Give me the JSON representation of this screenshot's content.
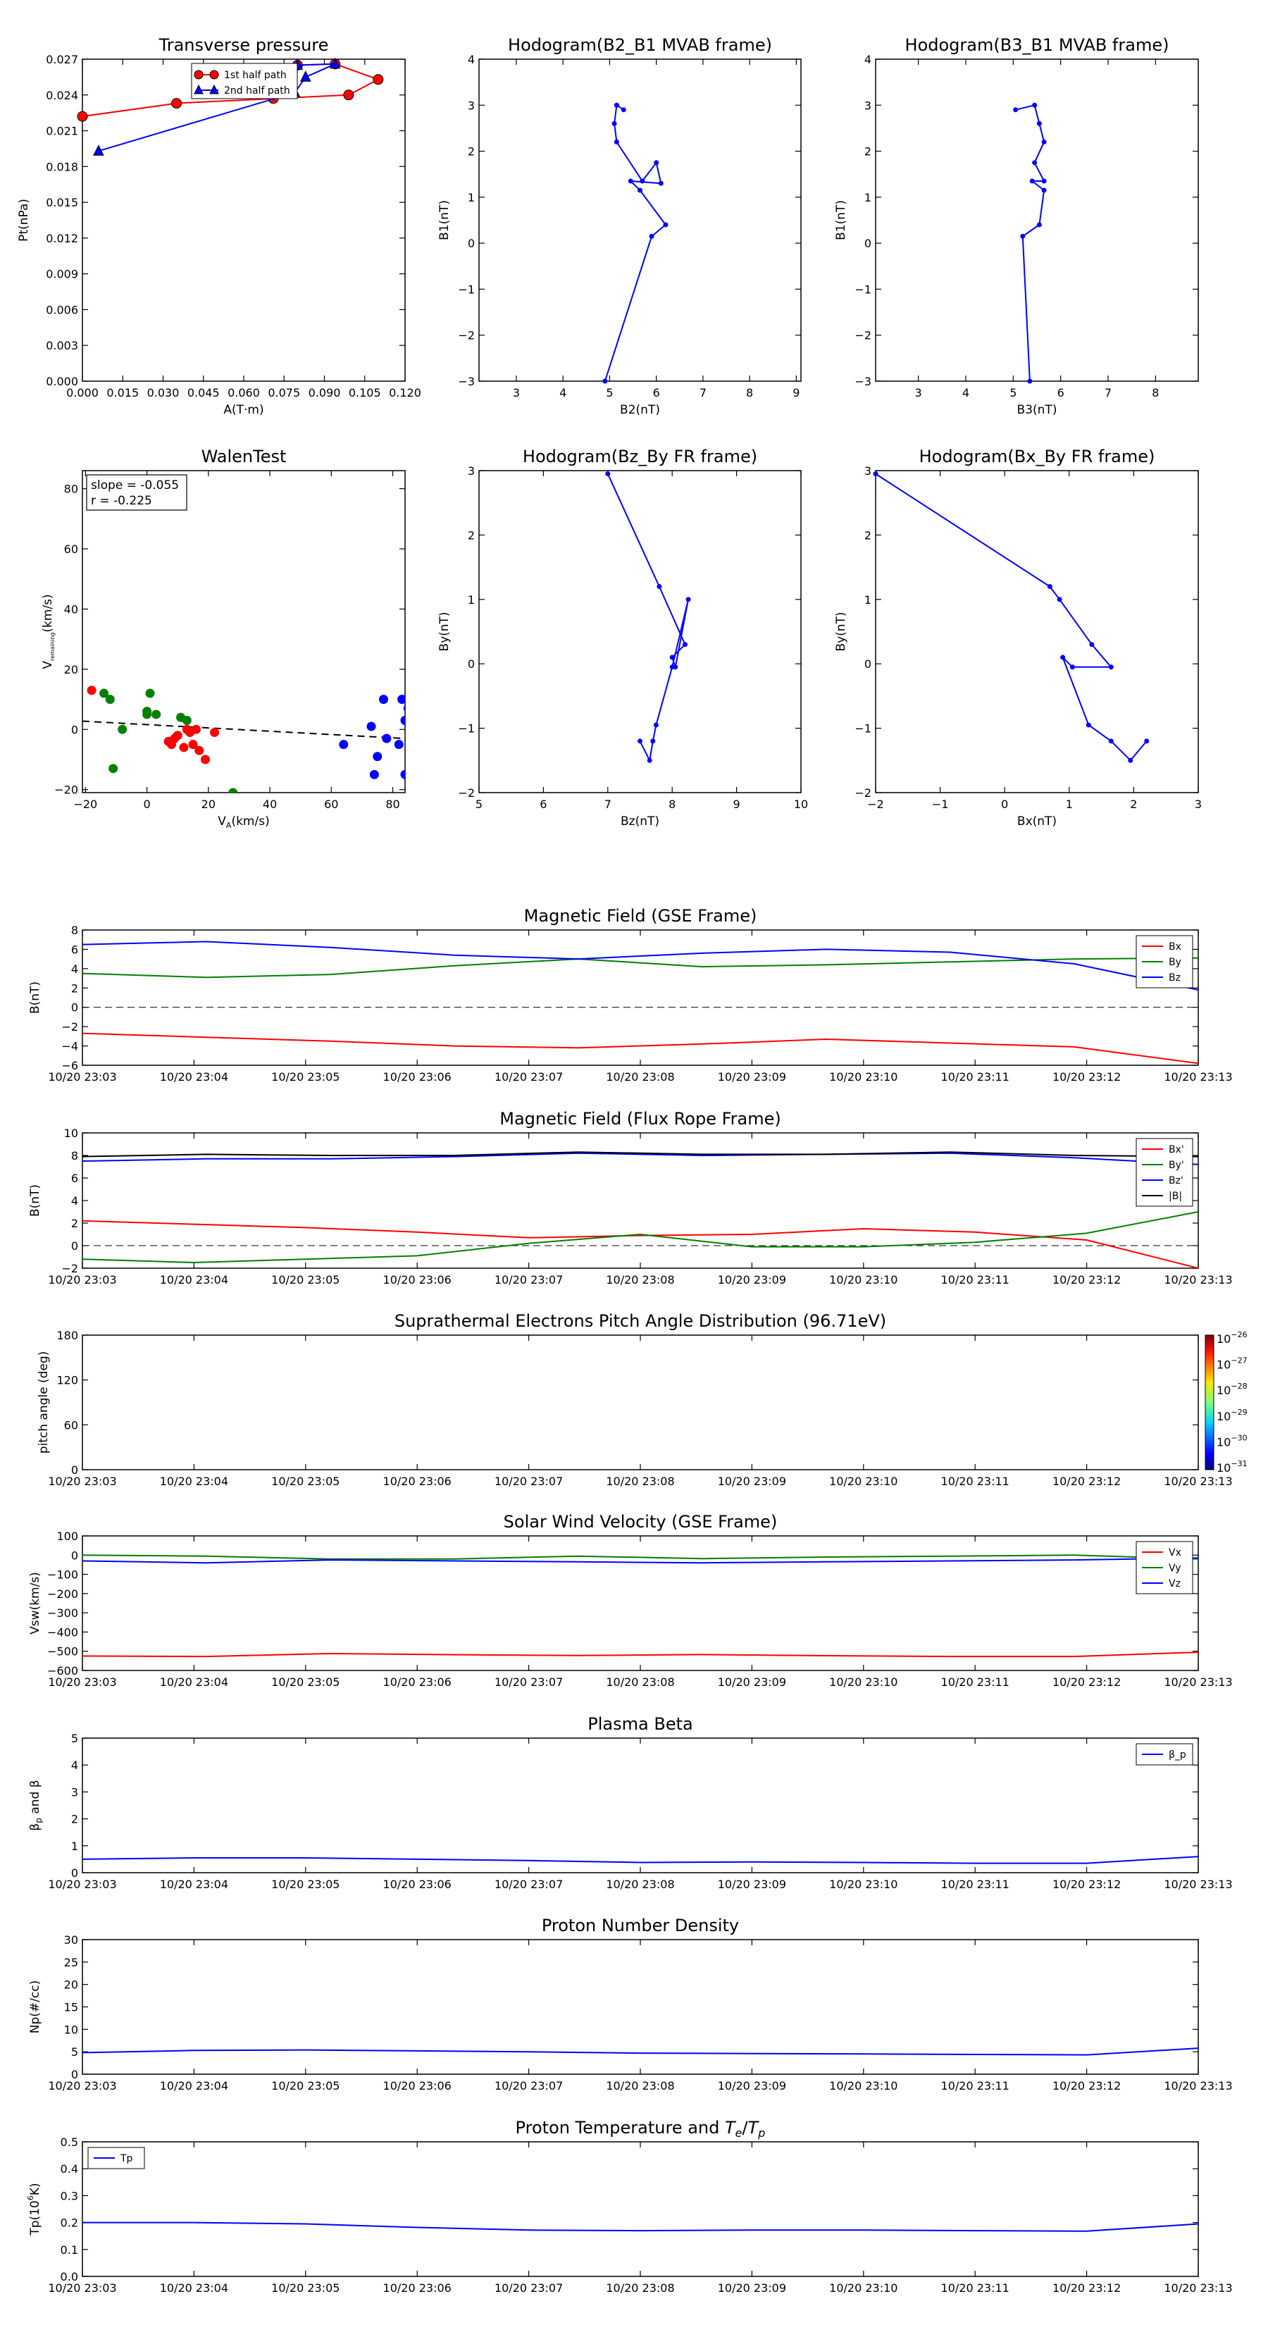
{
  "chart_data": [
    {
      "id": "transverse_pressure",
      "type": "line",
      "title": "Transverse pressure",
      "xlabel": "A(T·m)",
      "ylabel": "Pt(nPa)",
      "xlim": [
        0.0,
        0.12
      ],
      "ylim": [
        0.0,
        0.027
      ],
      "xticks": [
        0.0,
        0.015,
        0.03,
        0.045,
        0.06,
        0.075,
        0.09,
        0.105,
        0.12
      ],
      "xtick_labels": [
        "0.000",
        "0.015",
        "0.030",
        "0.045",
        "0.060",
        "0.075",
        "0.090",
        "0.105",
        "0.120"
      ],
      "yticks": [
        0.0,
        0.003,
        0.006,
        0.009,
        0.012,
        0.015,
        0.018,
        0.021,
        0.024,
        0.027
      ],
      "ytick_labels": [
        "0.000",
        "0.003",
        "0.006",
        "0.009",
        "0.012",
        "0.015",
        "0.018",
        "0.021",
        "0.024",
        "0.027"
      ],
      "grid": false,
      "legend_position": "top-center",
      "series": [
        {
          "name": "1st half path",
          "color": "#ff0000",
          "marker": "circle",
          "x": [
            0.0,
            0.035,
            0.071,
            0.099,
            0.11,
            0.094,
            0.08
          ],
          "y": [
            0.0222,
            0.0233,
            0.0237,
            0.024,
            0.0253,
            0.0266,
            0.0265
          ]
        },
        {
          "name": "2nd half path",
          "color": "#0000ff",
          "marker": "triangle",
          "x": [
            0.08,
            0.094,
            0.083,
            0.079,
            0.006
          ],
          "y": [
            0.0265,
            0.0266,
            0.0255,
            0.0242,
            0.0193
          ]
        }
      ]
    },
    {
      "id": "hodogram_b2_b1",
      "type": "line",
      "title": "Hodogram(B2_B1 MVAB frame)",
      "xlabel": "B2(nT)",
      "ylabel": "B1(nT)",
      "xlim": [
        2.2,
        9.1
      ],
      "ylim": [
        -3,
        4
      ],
      "xticks": [
        3,
        4,
        5,
        6,
        7,
        8,
        9
      ],
      "xtick_labels": [
        "3",
        "4",
        "5",
        "6",
        "7",
        "8",
        "9"
      ],
      "yticks": [
        -3,
        -2,
        -1,
        0,
        1,
        2,
        3,
        4
      ],
      "ytick_labels": [
        "−3",
        "−2",
        "−1",
        "0",
        "1",
        "2",
        "3",
        "4"
      ],
      "series": [
        {
          "color": "#0000ff",
          "marker": "dot",
          "x": [
            4.9,
            5.9,
            6.2,
            5.65,
            5.45,
            6.1,
            6.0,
            5.7,
            5.15,
            5.1,
            5.15,
            5.3
          ],
          "y": [
            -3.0,
            0.15,
            0.4,
            1.15,
            1.35,
            1.3,
            1.75,
            1.35,
            2.2,
            2.6,
            3.0,
            2.9
          ]
        }
      ]
    },
    {
      "id": "hodogram_b3_b1",
      "type": "line",
      "title": "Hodogram(B3_B1 MVAB frame)",
      "xlabel": "B3(nT)",
      "ylabel": "B1(nT)",
      "xlim": [
        2.1,
        8.9
      ],
      "ylim": [
        -3,
        4
      ],
      "xticks": [
        3,
        4,
        5,
        6,
        7,
        8
      ],
      "xtick_labels": [
        "3",
        "4",
        "5",
        "6",
        "7",
        "8"
      ],
      "yticks": [
        -3,
        -2,
        -1,
        0,
        1,
        2,
        3,
        4
      ],
      "ytick_labels": [
        "−3",
        "−2",
        "−1",
        "0",
        "1",
        "2",
        "3",
        "4"
      ],
      "series": [
        {
          "color": "#0000ff",
          "marker": "dot",
          "x": [
            5.35,
            5.2,
            5.55,
            5.65,
            5.4,
            5.65,
            5.45,
            5.65,
            5.55,
            5.45,
            5.05
          ],
          "y": [
            -3.0,
            0.15,
            0.4,
            1.15,
            1.35,
            1.35,
            1.75,
            2.2,
            2.6,
            3.0,
            2.9
          ]
        }
      ]
    },
    {
      "id": "walen_test",
      "type": "scatter",
      "title": "WalenTest",
      "xlabel": "V_A(km/s)",
      "ylabel": "V_remaining(km/s)",
      "xlim": [
        -21,
        84
      ],
      "ylim": [
        -21,
        86
      ],
      "xticks": [
        -20,
        0,
        20,
        40,
        60,
        80
      ],
      "xtick_labels": [
        "−20",
        "0",
        "20",
        "40",
        "60",
        "80"
      ],
      "yticks": [
        -20,
        0,
        20,
        40,
        60,
        80
      ],
      "ytick_labels": [
        "−20",
        "0",
        "20",
        "40",
        "60",
        "80"
      ],
      "annotations": [
        "slope = -0.055",
        "r = -0.225"
      ],
      "fit_line": {
        "slope": -0.055,
        "intercept": 1.6,
        "style": "dashed"
      },
      "series": [
        {
          "color": "#ff0000",
          "marker": "circle",
          "x": [
            -18,
            7,
            8,
            10,
            9,
            12,
            14,
            16,
            17,
            19,
            15,
            13,
            22
          ],
          "y": [
            13,
            -4,
            -5,
            -2,
            -3,
            -6,
            -1,
            0,
            -7,
            -10,
            -5,
            0,
            -1
          ]
        },
        {
          "color": "#008000",
          "marker": "circle",
          "x": [
            -14,
            -12,
            -11,
            -8,
            0,
            1,
            3,
            0,
            11,
            13,
            28
          ],
          "y": [
            12,
            10,
            -13,
            0,
            5,
            12,
            5,
            6,
            4,
            3,
            -21
          ]
        },
        {
          "color": "#0000ff",
          "marker": "circle",
          "x": [
            64,
            73,
            74,
            75,
            77,
            78,
            82,
            83,
            84,
            84,
            85,
            86
          ],
          "y": [
            -5,
            1,
            -15,
            -9,
            10,
            -3,
            -5,
            10,
            3,
            -15,
            7,
            -1
          ]
        }
      ]
    },
    {
      "id": "hodogram_bz_by",
      "type": "line",
      "title": "Hodogram(Bz_By FR frame)",
      "xlabel": "Bz(nT)",
      "ylabel": "By(nT)",
      "xlim": [
        5,
        10
      ],
      "ylim": [
        -2,
        3
      ],
      "xticks": [
        5,
        6,
        7,
        8,
        9,
        10
      ],
      "xtick_labels": [
        "5",
        "6",
        "7",
        "8",
        "9",
        "10"
      ],
      "yticks": [
        -2,
        -1,
        0,
        1,
        2,
        3
      ],
      "ytick_labels": [
        "−2",
        "−1",
        "0",
        "1",
        "2",
        "3"
      ],
      "series": [
        {
          "color": "#0000ff",
          "marker": "dot",
          "x": [
            7.0,
            7.8,
            8.2,
            8.0,
            8.05,
            8.25,
            8.0,
            7.75,
            7.7,
            7.65,
            7.5
          ],
          "y": [
            2.95,
            1.2,
            0.3,
            0.1,
            -0.05,
            1.0,
            -0.05,
            -0.95,
            -1.2,
            -1.5,
            -1.2
          ]
        }
      ]
    },
    {
      "id": "hodogram_bx_by",
      "type": "line",
      "title": "Hodogram(Bx_By FR frame)",
      "xlabel": "Bx(nT)",
      "ylabel": "By(nT)",
      "xlim": [
        -2,
        3
      ],
      "ylim": [
        -2,
        3
      ],
      "xticks": [
        -2,
        -1,
        0,
        1,
        2,
        3
      ],
      "xtick_labels": [
        "−2",
        "−1",
        "0",
        "1",
        "2",
        "3"
      ],
      "yticks": [
        -2,
        -1,
        0,
        1,
        2,
        3
      ],
      "ytick_labels": [
        "−2",
        "−1",
        "0",
        "1",
        "2",
        "3"
      ],
      "series": [
        {
          "color": "#0000ff",
          "marker": "dot",
          "x": [
            -2.0,
            0.7,
            0.85,
            1.35,
            1.65,
            1.05,
            0.9,
            1.3,
            1.65,
            1.95,
            2.2
          ],
          "y": [
            2.95,
            1.2,
            1.0,
            0.3,
            -0.05,
            -0.05,
            0.1,
            -0.95,
            -1.2,
            -1.5,
            -1.2
          ]
        }
      ]
    },
    {
      "id": "magnetic_field_gse",
      "type": "line",
      "title": "Magnetic Field (GSE Frame)",
      "ylabel": "B(nT)",
      "ylim": [
        -6,
        8
      ],
      "yticks": [
        -6,
        -4,
        -2,
        0,
        2,
        4,
        6,
        8
      ],
      "ytick_labels": [
        "−6",
        "−4",
        "−2",
        "0",
        "2",
        "4",
        "6",
        "8"
      ],
      "zero_line": true,
      "legend_position": "top-right",
      "series": [
        {
          "name": "Bx",
          "color": "#ff0000",
          "values": [
            -2.7,
            -3.1,
            -3.5,
            -4.0,
            -4.2,
            -3.8,
            -3.3,
            -3.7,
            -4.1,
            -5.8
          ]
        },
        {
          "name": "By",
          "color": "#008000",
          "values": [
            3.5,
            3.1,
            3.4,
            4.3,
            5.0,
            4.2,
            4.4,
            4.7,
            5.0,
            5.1
          ]
        },
        {
          "name": "Bz",
          "color": "#0000ff",
          "values": [
            6.5,
            6.8,
            6.2,
            5.4,
            5.0,
            5.6,
            6.0,
            5.7,
            4.5,
            1.8
          ]
        }
      ]
    },
    {
      "id": "magnetic_field_fr",
      "type": "line",
      "title": "Magnetic Field (Flux Rope Frame)",
      "ylabel": "B(nT)",
      "ylim": [
        -2,
        10
      ],
      "yticks": [
        -2,
        0,
        2,
        4,
        6,
        8,
        10
      ],
      "ytick_labels": [
        "−2",
        "0",
        "2",
        "4",
        "6",
        "8",
        "10"
      ],
      "zero_line": true,
      "legend_position": "top-right",
      "series": [
        {
          "name": "Bx'",
          "color": "#ff0000",
          "values": [
            2.2,
            1.9,
            1.6,
            1.2,
            0.7,
            0.9,
            1.0,
            1.5,
            1.2,
            0.5,
            -2.0
          ]
        },
        {
          "name": "By'",
          "color": "#008000",
          "values": [
            -1.2,
            -1.5,
            -1.2,
            -0.9,
            0.2,
            1.0,
            -0.1,
            -0.1,
            0.3,
            1.1,
            3.0
          ]
        },
        {
          "name": "Bz'",
          "color": "#0000ff",
          "values": [
            7.5,
            7.7,
            7.7,
            7.9,
            8.2,
            8.0,
            8.1,
            8.2,
            7.8,
            7.2
          ]
        },
        {
          "name": "|B|",
          "color": "#000000",
          "values": [
            7.9,
            8.1,
            8.0,
            8.0,
            8.3,
            8.1,
            8.1,
            8.3,
            8.0,
            7.9
          ]
        }
      ]
    },
    {
      "id": "pitch_angle_distribution",
      "type": "heatmap",
      "title": "Suprathermal Electrons Pitch Angle Distribution (96.71eV)",
      "ylabel": "pitch angle (deg)",
      "ylim": [
        0,
        180
      ],
      "yticks": [
        0,
        60,
        120,
        180
      ],
      "ytick_labels": [
        "0",
        "60",
        "120",
        "180"
      ],
      "colorbar_ticks": [
        "10^-26",
        "10^-27",
        "10^-28",
        "10^-29",
        "10^-30",
        "10^-31"
      ],
      "empty": true
    },
    {
      "id": "solar_wind_velocity",
      "type": "line",
      "title": "Solar Wind Velocity (GSE Frame)",
      "ylabel": "Vsw(km/s)",
      "ylim": [
        -600,
        100
      ],
      "yticks": [
        -600,
        -500,
        -400,
        -300,
        -200,
        -100,
        0,
        100
      ],
      "ytick_labels": [
        "−600",
        "−500",
        "−400",
        "−300",
        "−200",
        "−100",
        "0",
        "100"
      ],
      "legend_position": "top-right",
      "series": [
        {
          "name": "Vx",
          "color": "#ff0000",
          "values": [
            -525,
            -527,
            -512,
            -518,
            -522,
            -517,
            -523,
            -527,
            -527,
            -505
          ]
        },
        {
          "name": "Vy",
          "color": "#008000",
          "values": [
            0,
            -5,
            -20,
            -20,
            -5,
            -18,
            -10,
            -5,
            0,
            -20
          ]
        },
        {
          "name": "Vz",
          "color": "#0000ff",
          "values": [
            -30,
            -40,
            -25,
            -30,
            -35,
            -40,
            -35,
            -30,
            -25,
            -15
          ]
        }
      ]
    },
    {
      "id": "plasma_beta",
      "type": "line",
      "title": "Plasma Beta",
      "ylabel": "β_p and β",
      "ylim": [
        0,
        5
      ],
      "yticks": [
        0,
        1,
        2,
        3,
        4,
        5
      ],
      "ytick_labels": [
        "0",
        "1",
        "2",
        "3",
        "4",
        "5"
      ],
      "legend_position": "top-right",
      "series": [
        {
          "name": "β_p",
          "color": "#0000ff",
          "values": [
            0.5,
            0.55,
            0.55,
            0.5,
            0.45,
            0.38,
            0.4,
            0.38,
            0.35,
            0.35,
            0.6
          ]
        }
      ]
    },
    {
      "id": "proton_density",
      "type": "line",
      "title": "Proton Number Density",
      "ylabel": "Np(#/cc)",
      "ylim": [
        0,
        30
      ],
      "yticks": [
        0,
        5,
        10,
        15,
        20,
        25,
        30
      ],
      "ytick_labels": [
        "0",
        "5",
        "10",
        "15",
        "20",
        "25",
        "30"
      ],
      "series": [
        {
          "color": "#0000ff",
          "values": [
            4.8,
            5.3,
            5.4,
            5.2,
            5.0,
            4.7,
            4.6,
            4.5,
            4.4,
            4.3,
            5.8
          ]
        }
      ]
    },
    {
      "id": "proton_temperature",
      "type": "line",
      "title": "Proton Temperature and Te/Tp",
      "ylabel": "Tp(10^6 K)",
      "ylim": [
        0,
        0.5
      ],
      "yticks": [
        0.0,
        0.1,
        0.2,
        0.3,
        0.4,
        0.5
      ],
      "ytick_labels": [
        "0.0",
        "0.1",
        "0.2",
        "0.3",
        "0.4",
        "0.5"
      ],
      "legend_position": "top-left",
      "series": [
        {
          "name": "Tp",
          "color": "#0000ff",
          "values": [
            0.2,
            0.2,
            0.195,
            0.182,
            0.172,
            0.17,
            0.172,
            0.172,
            0.17,
            0.168,
            0.195
          ]
        }
      ]
    }
  ],
  "time_axis_labels": [
    "10/20 23:03",
    "10/20 23:04",
    "10/20 23:05",
    "10/20 23:06",
    "10/20 23:07",
    "10/20 23:08",
    "10/20 23:09",
    "10/20 23:10",
    "10/20 23:11",
    "10/20 23:12",
    "10/20 23:13"
  ]
}
